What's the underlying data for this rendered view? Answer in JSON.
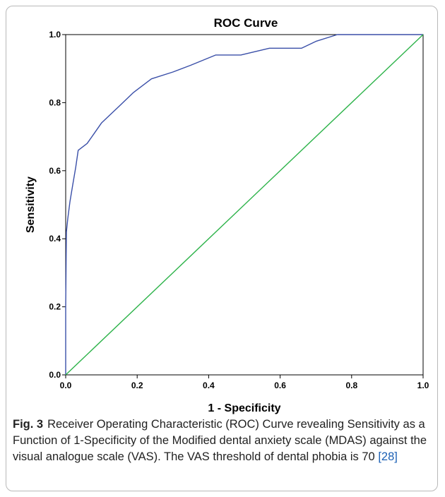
{
  "chart_data": {
    "type": "line",
    "title": "ROC Curve",
    "xlabel": "1 - Specificity",
    "ylabel": "Sensitivity",
    "xlim": [
      0,
      1
    ],
    "ylim": [
      0,
      1
    ],
    "xticks": [
      "0.0",
      "0.2",
      "0.4",
      "0.6",
      "0.8",
      "1.0"
    ],
    "yticks": [
      "0.0",
      "0.2",
      "0.4",
      "0.6",
      "0.8",
      "1.0"
    ],
    "grid": false,
    "series": [
      {
        "color": "#3a4fa8",
        "x": [
          0.0,
          0.0,
          0.002,
          0.006,
          0.012,
          0.02,
          0.028,
          0.035,
          0.06,
          0.08,
          0.1,
          0.15,
          0.19,
          0.24,
          0.3,
          0.35,
          0.42,
          0.49,
          0.57,
          0.66,
          0.7,
          0.76,
          1.0
        ],
        "y": [
          0.0,
          0.2,
          0.42,
          0.46,
          0.51,
          0.56,
          0.61,
          0.66,
          0.68,
          0.71,
          0.74,
          0.79,
          0.83,
          0.87,
          0.89,
          0.91,
          0.94,
          0.94,
          0.96,
          0.96,
          0.98,
          1.0,
          1.0
        ]
      },
      {
        "color": "#2db34a",
        "x": [
          0,
          1
        ],
        "y": [
          0,
          1
        ]
      }
    ]
  },
  "caption": {
    "label": "Fig. 3",
    "text": "Receiver Operating Characteristic (ROC) Curve revealing Sensitivity as a Function of 1-Specificity of the Modified dental anxiety scale (MDAS) against the visual analogue scale (VAS). The VAS threshold of dental phobia is 70",
    "ref": "[28]"
  }
}
